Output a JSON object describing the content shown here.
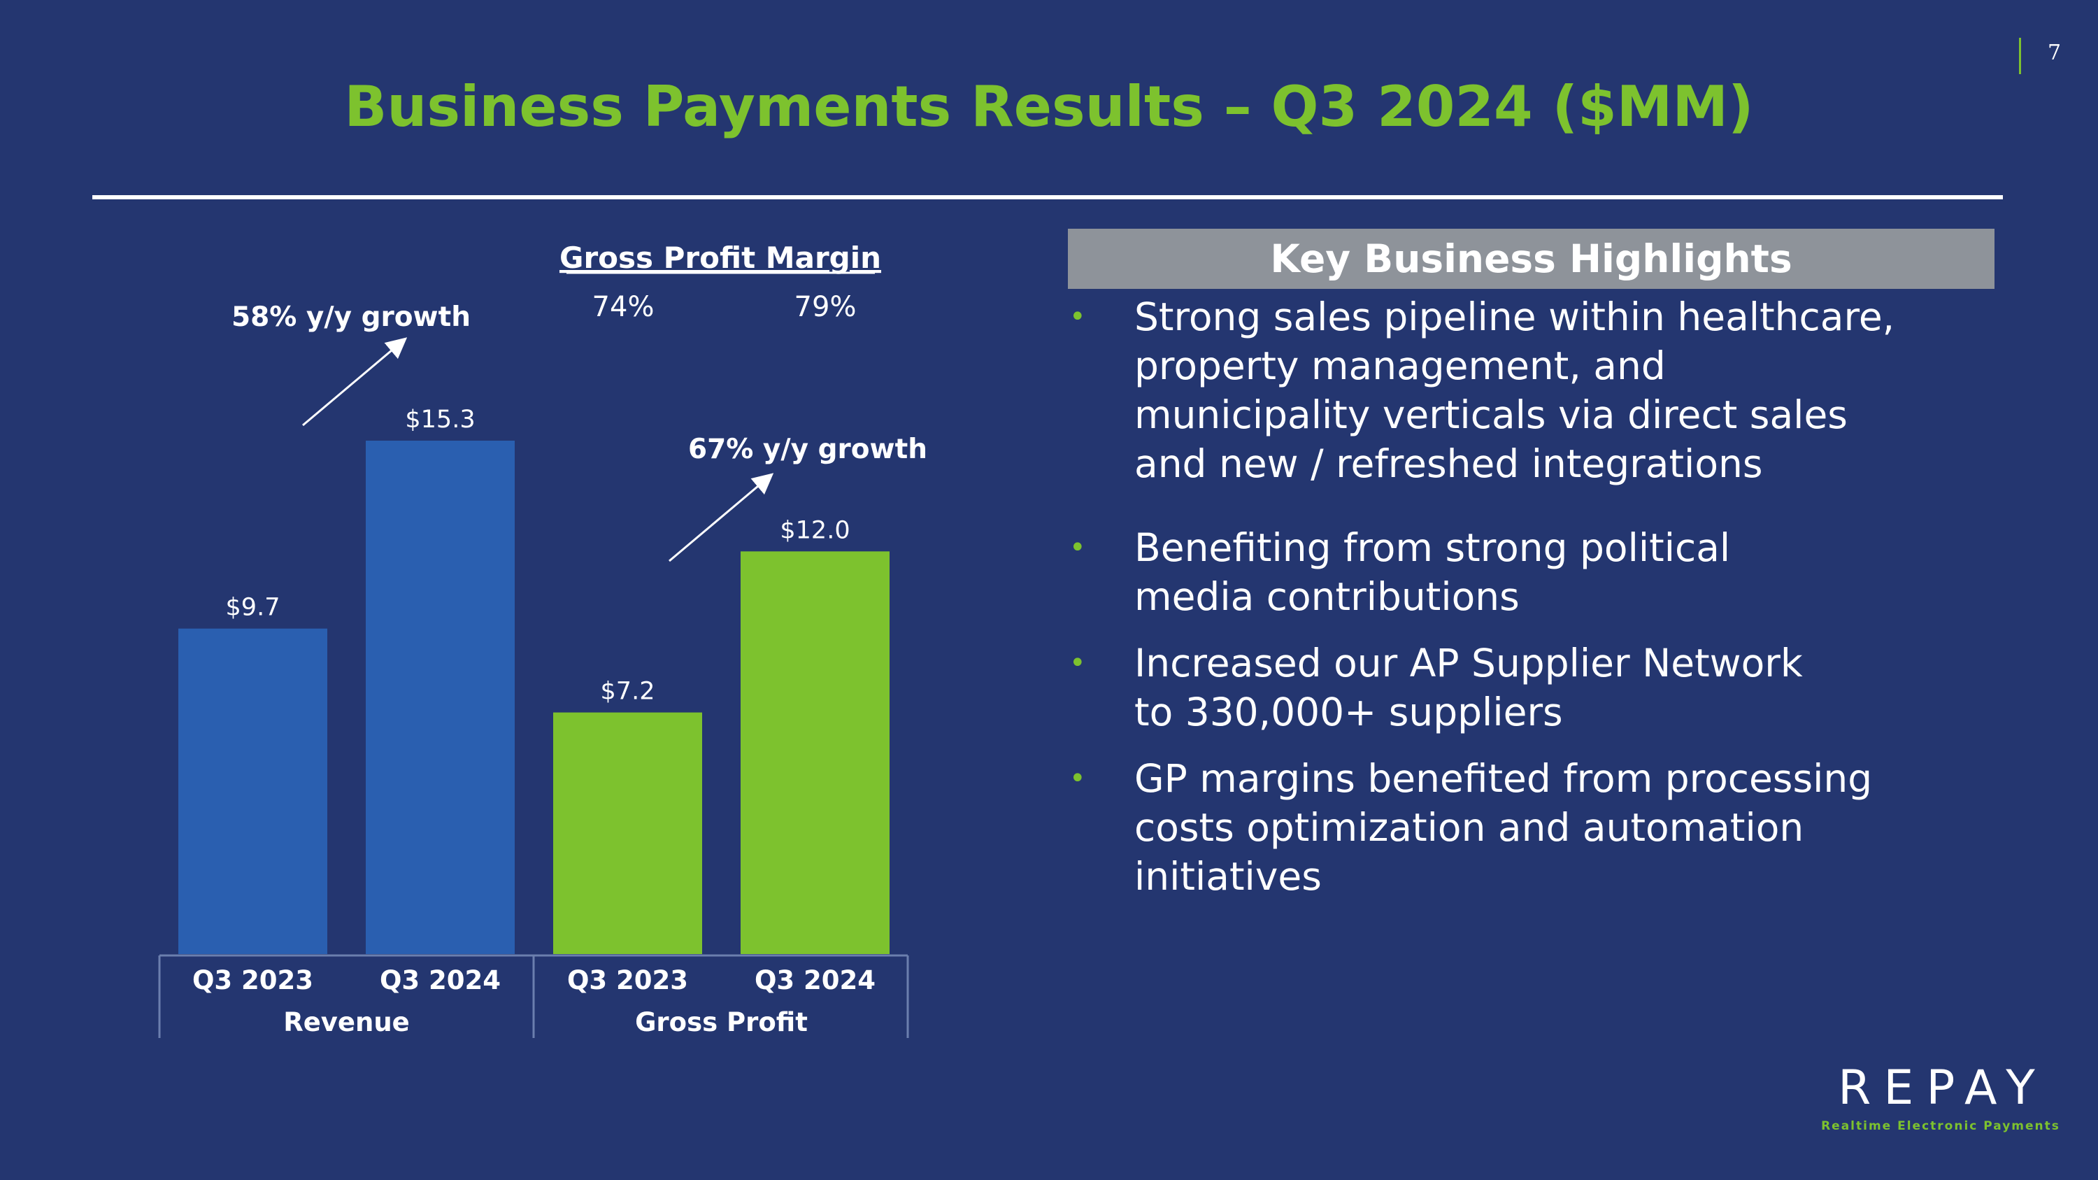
{
  "slide": {
    "title": "Business Payments Results – Q3 2024 ($MM)",
    "page_number": "7"
  },
  "colors": {
    "background": "#243670",
    "accent_green": "#7dc22e",
    "revenue_bar": "#2a5fb0",
    "gross_profit_bar": "#7dc22e",
    "highlight_header_bg": "#8e939a"
  },
  "chart_data": {
    "type": "bar",
    "categories": [
      "Q3 2023",
      "Q3 2024",
      "Q3 2023",
      "Q3 2024"
    ],
    "groups": [
      {
        "name": "Revenue",
        "categories": [
          "Q3 2023",
          "Q3 2024"
        ],
        "values": [
          9.7,
          15.3
        ],
        "value_labels": [
          "$9.7",
          "$15.3"
        ],
        "color": "#2a5fb0"
      },
      {
        "name": "Gross Profit",
        "categories": [
          "Q3 2023",
          "Q3 2024"
        ],
        "values": [
          7.2,
          12.0
        ],
        "value_labels": [
          "$7.2",
          "$12.0"
        ],
        "color": "#7dc22e"
      }
    ],
    "ylim": [
      0,
      15.3
    ],
    "grid": false,
    "annotations": [
      {
        "group": "Revenue",
        "text": "58% y/y growth"
      },
      {
        "group": "Gross Profit",
        "text": "67% y/y growth"
      }
    ],
    "gross_profit_margin": {
      "title": "Gross Profit Margin",
      "values": [
        "74%",
        "79%"
      ]
    }
  },
  "highlights": {
    "title": "Key Business Highlights",
    "bullet_glyph": "•",
    "items": [
      {
        "lines": [
          "Strong sales pipeline within healthcare,",
          "property management, and",
          "municipality verticals via direct sales",
          "and new / refreshed integrations"
        ]
      },
      {
        "lines": [
          "Benefiting from strong political",
          "media contributions"
        ]
      },
      {
        "lines": [
          "Increased our AP Supplier Network",
          "to 330,000+ suppliers"
        ]
      },
      {
        "lines": [
          "GP margins benefited from processing",
          "costs optimization and automation",
          "initiatives"
        ]
      }
    ]
  },
  "logo": {
    "wordmark": "REPAY",
    "tagline": "Realtime Electronic Payments"
  }
}
